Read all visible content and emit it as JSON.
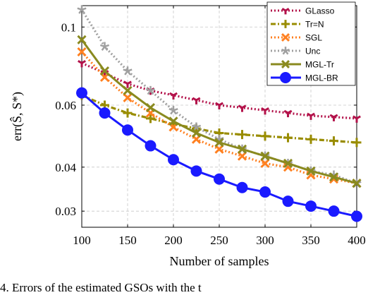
{
  "chart_data": {
    "type": "line",
    "xlabel": "Number of samples",
    "ylabel": "err(Ŝ, S*)",
    "y_scale": "log",
    "xlim": [
      100,
      400
    ],
    "ylim": [
      0.027,
      0.115
    ],
    "xticks": [
      100,
      150,
      200,
      250,
      300,
      350,
      400
    ],
    "yticks": [
      0.03,
      0.04,
      0.06,
      0.1
    ],
    "ytick_labels": [
      "0.03",
      "0.04",
      "0.06",
      "0.1"
    ],
    "grid": true,
    "legend_position": "top-right",
    "x": [
      100,
      125,
      150,
      175,
      200,
      225,
      250,
      275,
      300,
      325,
      350,
      375,
      400
    ],
    "series": [
      {
        "name": "GLasso",
        "color": "#b3124a",
        "style": "dotted",
        "marker": "tri_down",
        "values": [
          0.079,
          0.074,
          0.069,
          0.066,
          0.064,
          0.062,
          0.06,
          0.059,
          0.058,
          0.057,
          0.056,
          0.0555,
          0.055
        ]
      },
      {
        "name": "Tr=N",
        "color": "#998c00",
        "style": "dashdot",
        "marker": "plus",
        "values": [
          0.064,
          0.06,
          0.057,
          0.055,
          0.053,
          0.0515,
          0.05,
          0.0495,
          0.049,
          0.0485,
          0.048,
          0.0475,
          0.047
        ]
      },
      {
        "name": "SGL",
        "color": "#ff8020",
        "style": "dotted",
        "marker": "x",
        "values": [
          0.085,
          0.072,
          0.063,
          0.057,
          0.052,
          0.048,
          0.045,
          0.043,
          0.041,
          0.04,
          0.038,
          0.037,
          0.036
        ]
      },
      {
        "name": "Unc",
        "color": "#a0a0a0",
        "style": "dotted",
        "marker": "star",
        "values": [
          0.112,
          0.088,
          0.075,
          0.066,
          0.058,
          0.052,
          0.048,
          0.045,
          0.043,
          0.041,
          0.039,
          0.038,
          0.036
        ]
      },
      {
        "name": "MGL-Tr",
        "color": "#8a8a1f",
        "style": "solid",
        "marker": "x",
        "values": [
          0.092,
          0.075,
          0.066,
          0.059,
          0.054,
          0.05,
          0.047,
          0.045,
          0.043,
          0.041,
          0.039,
          0.0375,
          0.036
        ]
      },
      {
        "name": "MGL-BR",
        "color": "#1a1aff",
        "style": "solid",
        "marker": "circle",
        "values": [
          0.065,
          0.057,
          0.051,
          0.046,
          0.042,
          0.039,
          0.037,
          0.035,
          0.034,
          0.032,
          0.031,
          0.03,
          0.029
        ]
      }
    ]
  },
  "caption": "4. Errors of the estimated GSOs with the t"
}
